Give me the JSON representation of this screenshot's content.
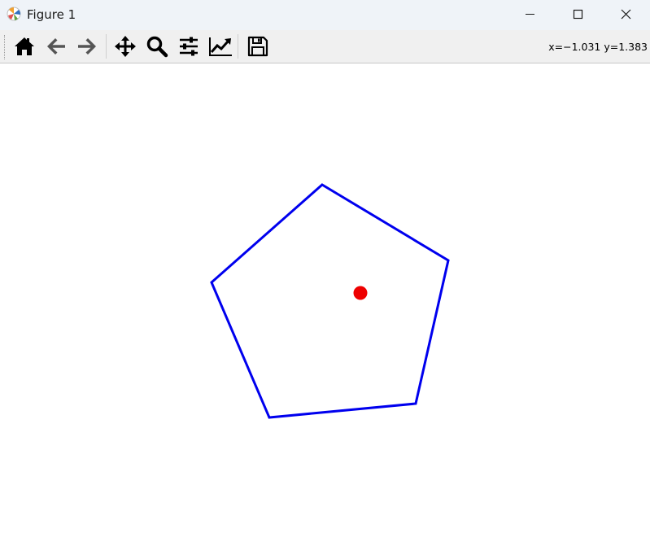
{
  "window": {
    "title": "Figure 1",
    "controls": [
      "minimize",
      "maximize",
      "close"
    ]
  },
  "toolbar": {
    "tools": [
      {
        "name": "home-icon",
        "tooltip": "Reset original view"
      },
      {
        "name": "back-arrow-icon",
        "tooltip": "Back to previous view"
      },
      {
        "name": "forward-arrow-icon",
        "tooltip": "Forward to next view"
      },
      {
        "name": "pan-move-icon",
        "tooltip": "Pan axes"
      },
      {
        "name": "zoom-magnifier-icon",
        "tooltip": "Zoom to rectangle"
      },
      {
        "name": "configure-subplots-icon",
        "tooltip": "Configure subplots"
      },
      {
        "name": "edit-axis-icon",
        "tooltip": "Edit axis, curve and image parameters"
      },
      {
        "name": "save-floppy-icon",
        "tooltip": "Save the figure"
      }
    ],
    "coordinates": "x=−1.031 y=1.383"
  },
  "plot": {
    "polygon_color": "#0000ee",
    "point_color": "#ee0000",
    "background": "#ffffff"
  }
}
